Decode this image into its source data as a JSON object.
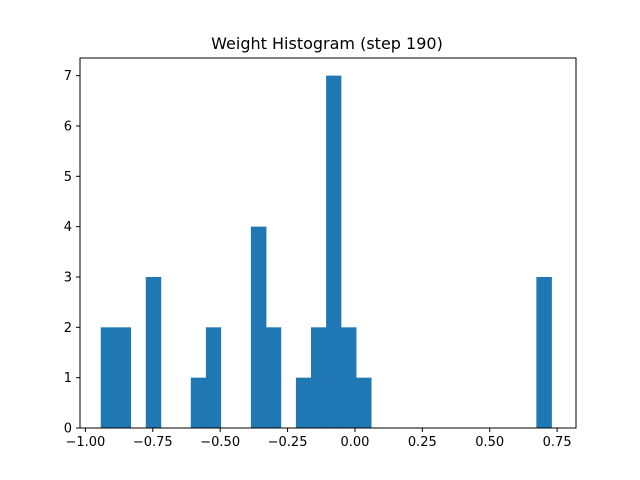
{
  "chart_data": {
    "type": "bar",
    "title": "Weight Histogram (step 190)",
    "xlabel": "",
    "ylabel": "",
    "xlim": [
      -1.02,
      0.82
    ],
    "ylim": [
      0,
      7.35
    ],
    "xticks": [
      -1.0,
      -0.75,
      -0.5,
      -0.25,
      0.0,
      0.25,
      0.5,
      0.75
    ],
    "xtick_labels": [
      "−1.00",
      "−0.75",
      "−0.50",
      "−0.25",
      "0.00",
      "0.25",
      "0.50",
      "0.75"
    ],
    "yticks": [
      0,
      1,
      2,
      3,
      4,
      5,
      6,
      7
    ],
    "ytick_labels": [
      "0",
      "1",
      "2",
      "3",
      "4",
      "5",
      "6",
      "7"
    ],
    "bin_edges": [
      -0.943,
      -0.888,
      -0.832,
      -0.776,
      -0.72,
      -0.665,
      -0.609,
      -0.553,
      -0.498,
      -0.442,
      -0.386,
      -0.33,
      -0.275,
      -0.219,
      -0.163,
      -0.107,
      -0.052,
      0.004,
      0.06,
      0.116,
      0.171,
      0.227,
      0.283,
      0.339,
      0.394,
      0.45,
      0.506,
      0.562,
      0.617,
      0.673,
      0.729
    ],
    "counts": [
      2,
      2,
      0,
      3,
      0,
      0,
      1,
      2,
      0,
      0,
      4,
      2,
      0,
      1,
      2,
      7,
      2,
      1,
      0,
      0,
      0,
      0,
      0,
      0,
      0,
      0,
      0,
      0,
      0,
      3
    ],
    "bar_color": "#1f77b4",
    "grid": false,
    "legend": "none"
  }
}
